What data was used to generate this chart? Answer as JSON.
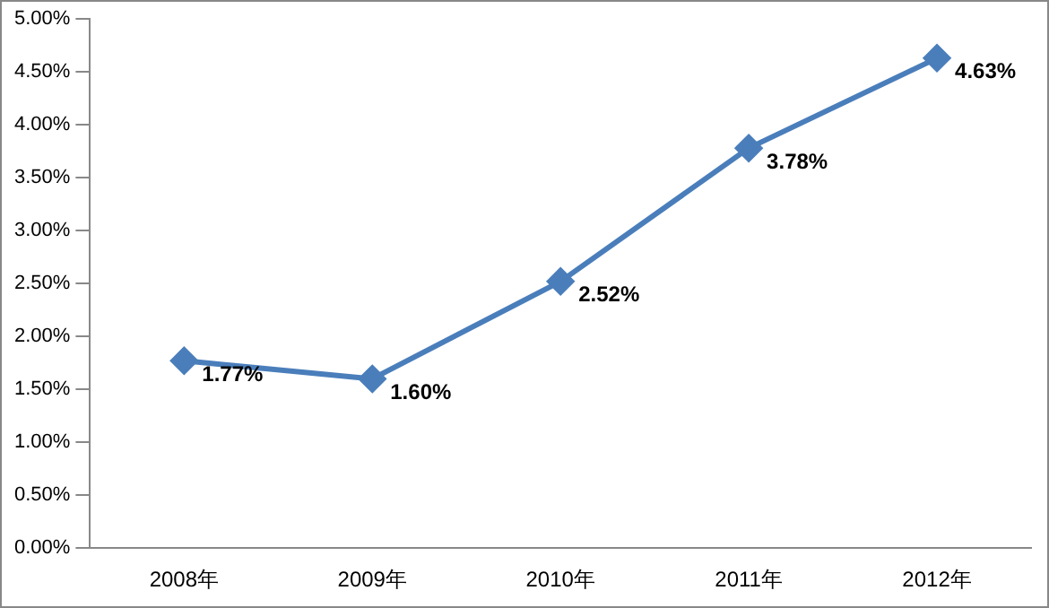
{
  "chart_data": {
    "type": "line",
    "categories": [
      "2008年",
      "2009年",
      "2010年",
      "2011年",
      "2012年"
    ],
    "series": [
      {
        "color": "#4a7ebb",
        "values": [
          1.77,
          1.6,
          2.52,
          3.78,
          4.63
        ],
        "value_labels": [
          "1.77%",
          "1.60%",
          "2.52%",
          "3.78%",
          "4.63%"
        ]
      }
    ],
    "ylim": [
      0,
      5
    ],
    "yticks": [
      {
        "value": 0,
        "label": "0.00%"
      },
      {
        "value": 0.5,
        "label": "0.50%"
      },
      {
        "value": 1,
        "label": "1.00%"
      },
      {
        "value": 1.5,
        "label": "1.50%"
      },
      {
        "value": 2,
        "label": "2.00%"
      },
      {
        "value": 2.5,
        "label": "2.50%"
      },
      {
        "value": 3,
        "label": "3.00%"
      },
      {
        "value": 3.5,
        "label": "3.50%"
      },
      {
        "value": 4,
        "label": "4.00%"
      },
      {
        "value": 4.5,
        "label": "4.50%"
      },
      {
        "value": 5,
        "label": "5.00%"
      }
    ],
    "grid": false,
    "legend": false,
    "marker": "diamond",
    "line_style": "solid"
  }
}
